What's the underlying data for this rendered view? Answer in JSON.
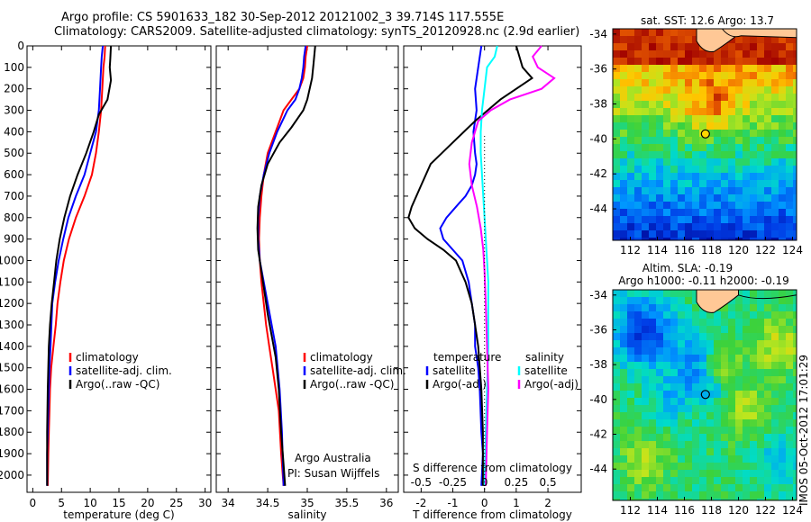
{
  "header": {
    "line1": "Argo profile: CS 5901633_182 30-Sep-2012 20121002_3 39.714S 117.555E",
    "line2": "Climatology: CARS2009. Satellite-adjusted climatology: synTS_20120928.nc (2.9d earlier)"
  },
  "stamp": "IMOS 05-Oct-2012 17:01:29",
  "colors": {
    "climatology": "#ff0000",
    "satellite": "#0000ff",
    "argo": "#000000",
    "satellite_s": "#00ffff",
    "argo_s": "#ff00ff"
  },
  "chart_data": [
    {
      "type": "line",
      "xlabel": "temperature (deg C)",
      "ylabel": "",
      "xlim": [
        -1,
        31
      ],
      "ylim": [
        2080,
        0
      ],
      "xticks": [
        "0",
        "5",
        "10",
        "15",
        "20",
        "25",
        "30"
      ],
      "yticks": [
        "0",
        "100",
        "200",
        "300",
        "400",
        "500",
        "600",
        "700",
        "800",
        "900",
        "1000",
        "1100",
        "1200",
        "1300",
        "1400",
        "1500",
        "1600",
        "1700",
        "1800",
        "1900",
        "2000"
      ],
      "legend_position": "center-right",
      "legend": [
        "climatology",
        "satellite-adj. clim.",
        "Argo(..raw -QC)"
      ],
      "series": [
        {
          "name": "climatology",
          "color": "#ff0000",
          "x": [
            12.6,
            12.5,
            12.3,
            12.1,
            11.9,
            11.5,
            11.0,
            10.3,
            9.0,
            7.5,
            6.3,
            5.4,
            4.8,
            4.3,
            4.0,
            3.6,
            3.2,
            3.0,
            2.9,
            2.8,
            2.7,
            2.6
          ],
          "y": [
            0,
            50,
            100,
            200,
            300,
            400,
            500,
            600,
            700,
            800,
            900,
            1000,
            1100,
            1200,
            1300,
            1400,
            1500,
            1600,
            1700,
            1800,
            1900,
            2050
          ]
        },
        {
          "name": "satellite-adj. clim.",
          "color": "#0000ff",
          "x": [
            12.2,
            12.0,
            11.9,
            11.7,
            11.5,
            11.0,
            10.0,
            9.0,
            7.5,
            6.2,
            5.3,
            4.5,
            3.9,
            3.4,
            3.1,
            2.9,
            2.8,
            2.7,
            2.6,
            2.5,
            2.5
          ],
          "y": [
            0,
            50,
            100,
            200,
            300,
            400,
            500,
            600,
            700,
            800,
            900,
            1000,
            1100,
            1200,
            1400,
            1500,
            1600,
            1700,
            1800,
            1900,
            2050
          ]
        },
        {
          "name": "Argo(..raw -QC)",
          "color": "#000000",
          "x": [
            13.6,
            13.5,
            13.4,
            13.6,
            13.0,
            11.5,
            10.6,
            9.3,
            7.8,
            6.5,
            5.5,
            4.7,
            4.1,
            3.7,
            3.3,
            3.0,
            2.8,
            2.7,
            2.6,
            2.5,
            2.5
          ],
          "y": [
            0,
            60,
            100,
            160,
            250,
            320,
            400,
            500,
            600,
            700,
            800,
            900,
            1000,
            1100,
            1200,
            1300,
            1400,
            1500,
            1600,
            1800,
            2050
          ]
        }
      ]
    },
    {
      "type": "line",
      "xlabel": "salinity",
      "ylabel": "",
      "xlim": [
        33.85,
        36.15
      ],
      "ylim": [
        2080,
        0
      ],
      "xticks": [
        "34",
        "34.5",
        "35",
        "35.5",
        "36"
      ],
      "legend_position": "center-right",
      "legend": [
        "climatology",
        "satellite-adj. clim.",
        "Argo(..raw -QC)"
      ],
      "annotation": [
        "Argo Australia",
        "PI: Susan Wijffels"
      ],
      "series": [
        {
          "name": "climatology",
          "color": "#ff0000",
          "x": [
            35.0,
            34.98,
            34.97,
            34.95,
            34.9,
            34.8,
            34.7,
            34.6,
            34.5,
            34.45,
            34.42,
            34.4,
            34.39,
            34.4,
            34.42,
            34.45,
            34.48,
            34.52,
            34.56,
            34.6,
            34.64,
            34.67,
            34.7
          ],
          "y": [
            0,
            50,
            100,
            150,
            200,
            250,
            300,
            400,
            500,
            600,
            700,
            800,
            900,
            1000,
            1100,
            1200,
            1300,
            1400,
            1500,
            1600,
            1700,
            1900,
            2050
          ]
        },
        {
          "name": "satellite-adj. clim.",
          "color": "#0000ff",
          "x": [
            34.98,
            34.96,
            34.95,
            34.93,
            34.9,
            34.85,
            34.75,
            34.62,
            34.52,
            34.45,
            34.4,
            34.38,
            34.38,
            34.4,
            34.45,
            34.5,
            34.55,
            34.6,
            34.65,
            34.68,
            34.7
          ],
          "y": [
            0,
            50,
            100,
            150,
            200,
            250,
            300,
            400,
            500,
            600,
            700,
            800,
            900,
            1000,
            1100,
            1200,
            1300,
            1400,
            1600,
            1800,
            2050
          ]
        },
        {
          "name": "Argo(..raw -QC)",
          "color": "#000000",
          "x": [
            35.1,
            35.08,
            35.06,
            35.0,
            34.95,
            34.8,
            34.65,
            34.5,
            34.42,
            34.38,
            34.37,
            34.38,
            34.42,
            34.46,
            34.5,
            34.55,
            34.6,
            34.64,
            34.67,
            34.7,
            34.72
          ],
          "y": [
            0,
            80,
            150,
            250,
            300,
            380,
            450,
            550,
            650,
            750,
            850,
            950,
            1050,
            1150,
            1250,
            1350,
            1450,
            1600,
            1800,
            1950,
            2050
          ]
        }
      ]
    },
    {
      "type": "line",
      "xlabel": "T difference from climatology",
      "x2label": "S difference from climatology",
      "ylabel": "",
      "xlim": [
        -2.55,
        3.05
      ],
      "x2lim": [
        -0.6375,
        0.7625
      ],
      "ylim": [
        2080,
        0
      ],
      "xticks": [
        "-2",
        "-1",
        "0",
        "1",
        "2"
      ],
      "x2ticks": [
        "-0.5",
        "-0.25",
        "0",
        "0.25",
        "0.5"
      ],
      "legend_position": "center",
      "legend": [
        "temperature",
        "satellite",
        "Argo(-adj)",
        "salinity",
        "satellite",
        "Argo(-adj)"
      ],
      "series": [
        {
          "name": "temperature satellite",
          "color": "#0000ff",
          "x": [
            -0.1,
            -0.2,
            -0.3,
            -0.25,
            -0.35,
            -0.3,
            -0.25,
            -0.3,
            -0.4,
            -0.6,
            -0.9,
            -1.2,
            -1.4,
            -1.3,
            -1.0,
            -0.7,
            -0.5,
            -0.4,
            -0.3,
            -0.3,
            -0.2,
            -0.15,
            -0.1,
            -0.05,
            -0.1
          ],
          "y": [
            0,
            100,
            200,
            300,
            400,
            500,
            550,
            600,
            650,
            700,
            750,
            800,
            850,
            900,
            950,
            1000,
            1100,
            1200,
            1300,
            1400,
            1500,
            1600,
            1800,
            1900,
            2050
          ]
        },
        {
          "name": "temperature Argo(-adj)",
          "color": "#000000",
          "x": [
            1.0,
            1.1,
            1.2,
            1.5,
            0.5,
            -0.3,
            -1.0,
            -1.7,
            -2.0,
            -2.3,
            -2.4,
            -2.2,
            -1.8,
            -1.3,
            -0.9,
            -0.6,
            -0.4,
            -0.3,
            -0.2,
            -0.1,
            -0.05,
            -0.05
          ],
          "y": [
            0,
            50,
            100,
            150,
            250,
            350,
            450,
            550,
            650,
            750,
            800,
            850,
            900,
            950,
            1000,
            1100,
            1200,
            1300,
            1400,
            1600,
            1800,
            2050
          ]
        },
        {
          "name": "salinity satellite",
          "color": "#00ffff",
          "x": [
            0.1,
            0.08,
            0.02,
            0.0,
            -0.02,
            -0.03,
            -0.03,
            -0.02,
            -0.01,
            0.0,
            0.01,
            0.02,
            0.03,
            0.03,
            0.03,
            0.02,
            0.01,
            0.0
          ],
          "y": [
            0,
            50,
            100,
            200,
            300,
            400,
            500,
            600,
            700,
            800,
            900,
            1000,
            1100,
            1200,
            1400,
            1600,
            1800,
            2050
          ]
        },
        {
          "name": "salinity Argo(-adj)",
          "color": "#ff00ff",
          "x": [
            0.45,
            0.38,
            0.42,
            0.55,
            0.45,
            0.2,
            0.05,
            -0.05,
            -0.1,
            -0.12,
            -0.1,
            -0.06,
            -0.03,
            -0.01,
            0.0,
            0.01,
            0.02,
            0.03,
            0.02,
            0.01
          ],
          "y": [
            0,
            50,
            100,
            150,
            200,
            250,
            300,
            350,
            450,
            550,
            650,
            750,
            850,
            950,
            1050,
            1200,
            1400,
            1600,
            1800,
            2050
          ]
        }
      ]
    },
    {
      "type": "heatmap",
      "title": "sat. SST: 12.6  Argo: 13.7",
      "xticks": [
        "112",
        "114",
        "116",
        "118",
        "120",
        "122",
        "124"
      ],
      "yticks": [
        "-34",
        "-36",
        "-38",
        "-40",
        "-42",
        "-44"
      ],
      "xlim": [
        110.7,
        124.3
      ],
      "ylim": [
        -45.8,
        -33.7
      ],
      "float_lon": 117.555,
      "float_lat": -39.714
    },
    {
      "type": "heatmap",
      "title": "Altim. SLA: -0.19",
      "subtitle": "Argo h1000: -0.11  h2000: -0.19",
      "xticks": [
        "112",
        "114",
        "116",
        "118",
        "120",
        "122",
        "124"
      ],
      "yticks": [
        "-34",
        "-36",
        "-38",
        "-40",
        "-42",
        "-44"
      ],
      "xlim": [
        110.7,
        124.3
      ],
      "ylim": [
        -45.8,
        -33.7
      ],
      "float_lon": 117.555,
      "float_lat": -39.714
    }
  ]
}
